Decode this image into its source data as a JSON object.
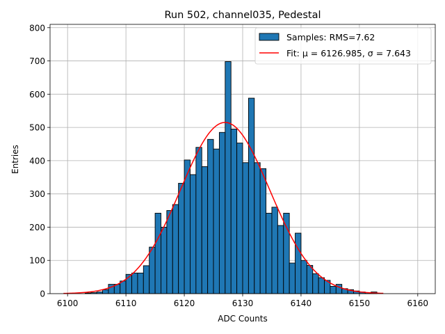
{
  "chart_data": {
    "type": "bar",
    "title": "Run 502, channel035, Pedestal",
    "xlabel": "ADC Counts",
    "ylabel": "Entries",
    "xlim": [
      6097.0,
      6163.0
    ],
    "ylim": [
      0,
      810
    ],
    "xticks": [
      6100,
      6110,
      6120,
      6130,
      6140,
      6150,
      6160
    ],
    "yticks": [
      0,
      100,
      200,
      300,
      400,
      500,
      600,
      700,
      800
    ],
    "grid": true,
    "legend_position": "top-right",
    "bin_width": 1,
    "colors": {
      "bars": "#1f77b4",
      "fit": "#ff0000",
      "edge": "#000000"
    },
    "series": [
      {
        "name": "Samples: RMS=7.62",
        "kind": "histogram",
        "bin_edges_start": [
          6103,
          6104,
          6105,
          6106,
          6107,
          6108,
          6109,
          6110,
          6111,
          6112,
          6113,
          6114,
          6115,
          6116,
          6117,
          6118,
          6119,
          6120,
          6121,
          6122,
          6123,
          6124,
          6125,
          6126,
          6127,
          6128,
          6129,
          6130,
          6131,
          6132,
          6133,
          6134,
          6135,
          6136,
          6137,
          6138,
          6139,
          6140,
          6141,
          6142,
          6143,
          6144,
          6145,
          6146,
          6147,
          6148,
          6149,
          6150,
          6151,
          6152
        ],
        "values": [
          2,
          3,
          5,
          12,
          28,
          28,
          38,
          58,
          62,
          62,
          84,
          140,
          242,
          200,
          250,
          268,
          332,
          402,
          358,
          440,
          382,
          464,
          435,
          485,
          698,
          495,
          453,
          394,
          588,
          394,
          376,
          242,
          260,
          205,
          242,
          92,
          182,
          100,
          85,
          60,
          48,
          40,
          22,
          28,
          15,
          12,
          8,
          5,
          3,
          5
        ]
      },
      {
        "name": "Fit: μ = 6126.985, σ = 7.643",
        "kind": "gaussian-fit",
        "mu": 6126.985,
        "sigma": 7.643,
        "amplitude": 515,
        "x_range": [
          6099.3,
          6154.1
        ]
      }
    ]
  }
}
